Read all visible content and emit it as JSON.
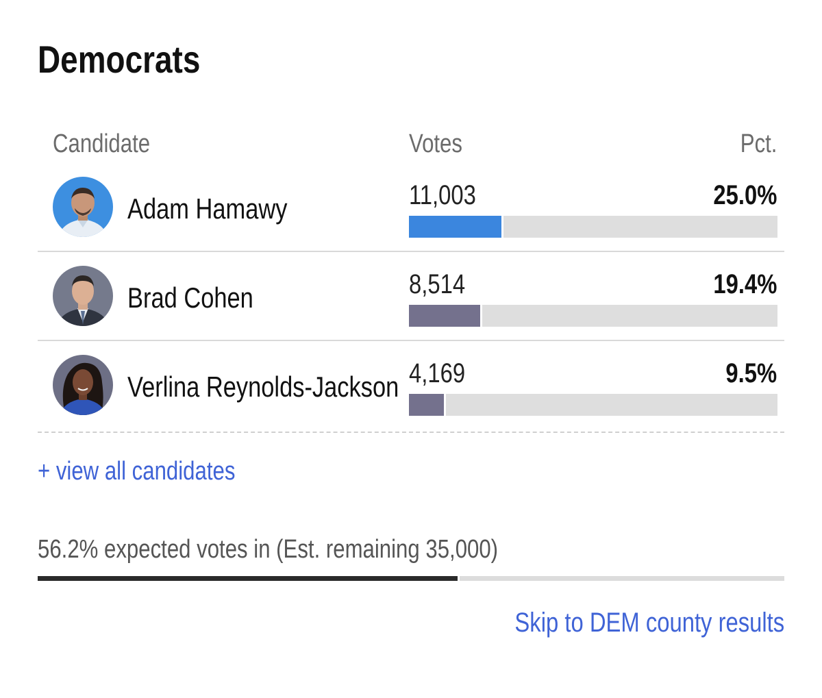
{
  "section": {
    "title": "Democrats"
  },
  "table": {
    "headers": {
      "candidate": "Candidate",
      "votes": "Votes",
      "pct": "Pct."
    },
    "rows": [
      {
        "name": "Adam Hamawy",
        "votes": "11,003",
        "pct": "25.0%",
        "share": 0.25,
        "bar_color": "#3b86de",
        "avatar_bg": "#3d8fe0"
      },
      {
        "name": "Brad Cohen",
        "votes": "8,514",
        "pct": "19.4%",
        "share": 0.194,
        "bar_color": "#74718d",
        "avatar_bg": "#757a8c"
      },
      {
        "name": "Verlina Reynolds-Jackson",
        "votes": "4,169",
        "pct": "9.5%",
        "share": 0.095,
        "bar_color": "#74718d",
        "avatar_bg": "#6d6f85"
      }
    ]
  },
  "links": {
    "view_all": "+ view all candidates",
    "skip": "Skip to DEM county results"
  },
  "status": {
    "expected_text": "56.2% expected votes in (Est. remaining 35,000)",
    "expected_share": 0.562
  },
  "colors": {
    "link": "#3f63d6",
    "progress_fill": "#2a2a2a",
    "track": "#dedede"
  }
}
